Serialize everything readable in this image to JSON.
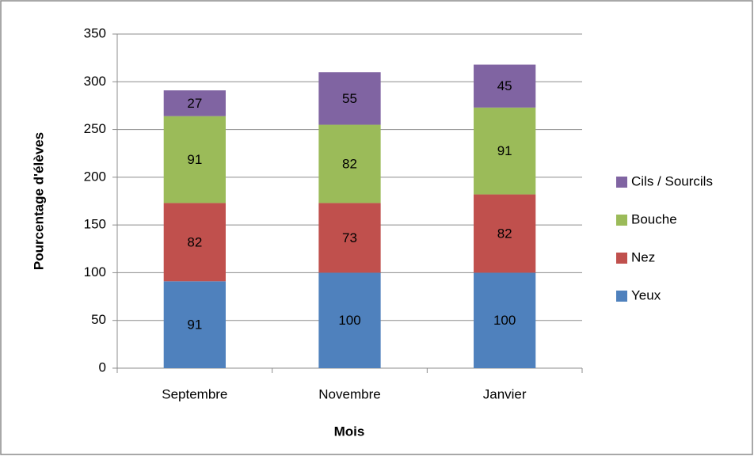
{
  "chart_data": {
    "type": "stacked_bar",
    "x_label": "Mois",
    "y_label": "Pourcentage d'élèves",
    "categories": [
      "Septembre",
      "Novembre",
      "Janvier"
    ],
    "series": [
      {
        "name": "Yeux",
        "color": "#4f81bd",
        "values": [
          91,
          100,
          100
        ]
      },
      {
        "name": "Nez",
        "color": "#c0504d",
        "values": [
          82,
          73,
          82
        ]
      },
      {
        "name": "Bouche",
        "color": "#9bbb59",
        "values": [
          91,
          82,
          91
        ]
      },
      {
        "name": "Cils / Sourcils",
        "color": "#8064a2",
        "values": [
          27,
          55,
          45
        ]
      }
    ],
    "ylim": [
      0,
      350
    ],
    "yticks": [
      0,
      50,
      100,
      150,
      200,
      250,
      300,
      350
    ],
    "grid": true,
    "legend": "right"
  }
}
